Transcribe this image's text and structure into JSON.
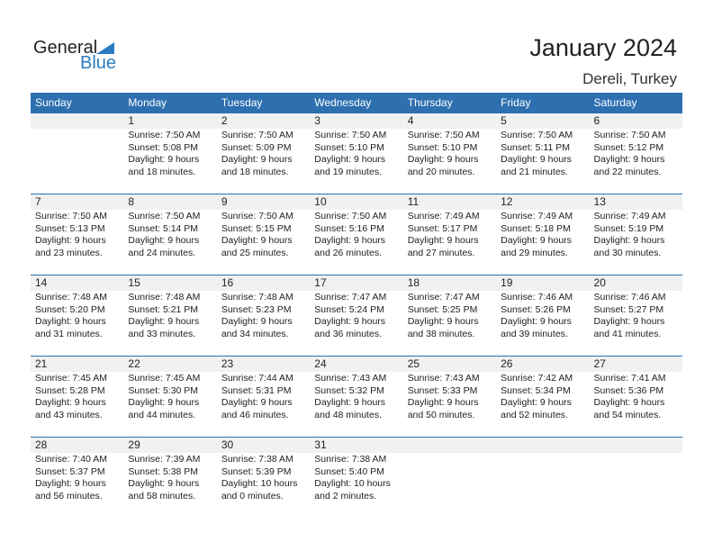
{
  "logo": {
    "word1": "General",
    "word2": "Blue"
  },
  "title": "January 2024",
  "location": "Dereli, Turkey",
  "days": [
    "Sunday",
    "Monday",
    "Tuesday",
    "Wednesday",
    "Thursday",
    "Friday",
    "Saturday"
  ],
  "weeks": [
    [
      null,
      {
        "day": "1",
        "sunrise": "Sunrise: 7:50 AM",
        "sunset": "Sunset: 5:08 PM",
        "daylight1": "Daylight: 9 hours",
        "daylight2": "and 18 minutes."
      },
      {
        "day": "2",
        "sunrise": "Sunrise: 7:50 AM",
        "sunset": "Sunset: 5:09 PM",
        "daylight1": "Daylight: 9 hours",
        "daylight2": "and 18 minutes."
      },
      {
        "day": "3",
        "sunrise": "Sunrise: 7:50 AM",
        "sunset": "Sunset: 5:10 PM",
        "daylight1": "Daylight: 9 hours",
        "daylight2": "and 19 minutes."
      },
      {
        "day": "4",
        "sunrise": "Sunrise: 7:50 AM",
        "sunset": "Sunset: 5:10 PM",
        "daylight1": "Daylight: 9 hours",
        "daylight2": "and 20 minutes."
      },
      {
        "day": "5",
        "sunrise": "Sunrise: 7:50 AM",
        "sunset": "Sunset: 5:11 PM",
        "daylight1": "Daylight: 9 hours",
        "daylight2": "and 21 minutes."
      },
      {
        "day": "6",
        "sunrise": "Sunrise: 7:50 AM",
        "sunset": "Sunset: 5:12 PM",
        "daylight1": "Daylight: 9 hours",
        "daylight2": "and 22 minutes."
      }
    ],
    [
      {
        "day": "7",
        "sunrise": "Sunrise: 7:50 AM",
        "sunset": "Sunset: 5:13 PM",
        "daylight1": "Daylight: 9 hours",
        "daylight2": "and 23 minutes."
      },
      {
        "day": "8",
        "sunrise": "Sunrise: 7:50 AM",
        "sunset": "Sunset: 5:14 PM",
        "daylight1": "Daylight: 9 hours",
        "daylight2": "and 24 minutes."
      },
      {
        "day": "9",
        "sunrise": "Sunrise: 7:50 AM",
        "sunset": "Sunset: 5:15 PM",
        "daylight1": "Daylight: 9 hours",
        "daylight2": "and 25 minutes."
      },
      {
        "day": "10",
        "sunrise": "Sunrise: 7:50 AM",
        "sunset": "Sunset: 5:16 PM",
        "daylight1": "Daylight: 9 hours",
        "daylight2": "and 26 minutes."
      },
      {
        "day": "11",
        "sunrise": "Sunrise: 7:49 AM",
        "sunset": "Sunset: 5:17 PM",
        "daylight1": "Daylight: 9 hours",
        "daylight2": "and 27 minutes."
      },
      {
        "day": "12",
        "sunrise": "Sunrise: 7:49 AM",
        "sunset": "Sunset: 5:18 PM",
        "daylight1": "Daylight: 9 hours",
        "daylight2": "and 29 minutes."
      },
      {
        "day": "13",
        "sunrise": "Sunrise: 7:49 AM",
        "sunset": "Sunset: 5:19 PM",
        "daylight1": "Daylight: 9 hours",
        "daylight2": "and 30 minutes."
      }
    ],
    [
      {
        "day": "14",
        "sunrise": "Sunrise: 7:48 AM",
        "sunset": "Sunset: 5:20 PM",
        "daylight1": "Daylight: 9 hours",
        "daylight2": "and 31 minutes."
      },
      {
        "day": "15",
        "sunrise": "Sunrise: 7:48 AM",
        "sunset": "Sunset: 5:21 PM",
        "daylight1": "Daylight: 9 hours",
        "daylight2": "and 33 minutes."
      },
      {
        "day": "16",
        "sunrise": "Sunrise: 7:48 AM",
        "sunset": "Sunset: 5:23 PM",
        "daylight1": "Daylight: 9 hours",
        "daylight2": "and 34 minutes."
      },
      {
        "day": "17",
        "sunrise": "Sunrise: 7:47 AM",
        "sunset": "Sunset: 5:24 PM",
        "daylight1": "Daylight: 9 hours",
        "daylight2": "and 36 minutes."
      },
      {
        "day": "18",
        "sunrise": "Sunrise: 7:47 AM",
        "sunset": "Sunset: 5:25 PM",
        "daylight1": "Daylight: 9 hours",
        "daylight2": "and 38 minutes."
      },
      {
        "day": "19",
        "sunrise": "Sunrise: 7:46 AM",
        "sunset": "Sunset: 5:26 PM",
        "daylight1": "Daylight: 9 hours",
        "daylight2": "and 39 minutes."
      },
      {
        "day": "20",
        "sunrise": "Sunrise: 7:46 AM",
        "sunset": "Sunset: 5:27 PM",
        "daylight1": "Daylight: 9 hours",
        "daylight2": "and 41 minutes."
      }
    ],
    [
      {
        "day": "21",
        "sunrise": "Sunrise: 7:45 AM",
        "sunset": "Sunset: 5:28 PM",
        "daylight1": "Daylight: 9 hours",
        "daylight2": "and 43 minutes."
      },
      {
        "day": "22",
        "sunrise": "Sunrise: 7:45 AM",
        "sunset": "Sunset: 5:30 PM",
        "daylight1": "Daylight: 9 hours",
        "daylight2": "and 44 minutes."
      },
      {
        "day": "23",
        "sunrise": "Sunrise: 7:44 AM",
        "sunset": "Sunset: 5:31 PM",
        "daylight1": "Daylight: 9 hours",
        "daylight2": "and 46 minutes."
      },
      {
        "day": "24",
        "sunrise": "Sunrise: 7:43 AM",
        "sunset": "Sunset: 5:32 PM",
        "daylight1": "Daylight: 9 hours",
        "daylight2": "and 48 minutes."
      },
      {
        "day": "25",
        "sunrise": "Sunrise: 7:43 AM",
        "sunset": "Sunset: 5:33 PM",
        "daylight1": "Daylight: 9 hours",
        "daylight2": "and 50 minutes."
      },
      {
        "day": "26",
        "sunrise": "Sunrise: 7:42 AM",
        "sunset": "Sunset: 5:34 PM",
        "daylight1": "Daylight: 9 hours",
        "daylight2": "and 52 minutes."
      },
      {
        "day": "27",
        "sunrise": "Sunrise: 7:41 AM",
        "sunset": "Sunset: 5:36 PM",
        "daylight1": "Daylight: 9 hours",
        "daylight2": "and 54 minutes."
      }
    ],
    [
      {
        "day": "28",
        "sunrise": "Sunrise: 7:40 AM",
        "sunset": "Sunset: 5:37 PM",
        "daylight1": "Daylight: 9 hours",
        "daylight2": "and 56 minutes."
      },
      {
        "day": "29",
        "sunrise": "Sunrise: 7:39 AM",
        "sunset": "Sunset: 5:38 PM",
        "daylight1": "Daylight: 9 hours",
        "daylight2": "and 58 minutes."
      },
      {
        "day": "30",
        "sunrise": "Sunrise: 7:38 AM",
        "sunset": "Sunset: 5:39 PM",
        "daylight1": "Daylight: 10 hours",
        "daylight2": "and 0 minutes."
      },
      {
        "day": "31",
        "sunrise": "Sunrise: 7:38 AM",
        "sunset": "Sunset: 5:40 PM",
        "daylight1": "Daylight: 10 hours",
        "daylight2": "and 2 minutes."
      },
      null,
      null,
      null
    ]
  ]
}
